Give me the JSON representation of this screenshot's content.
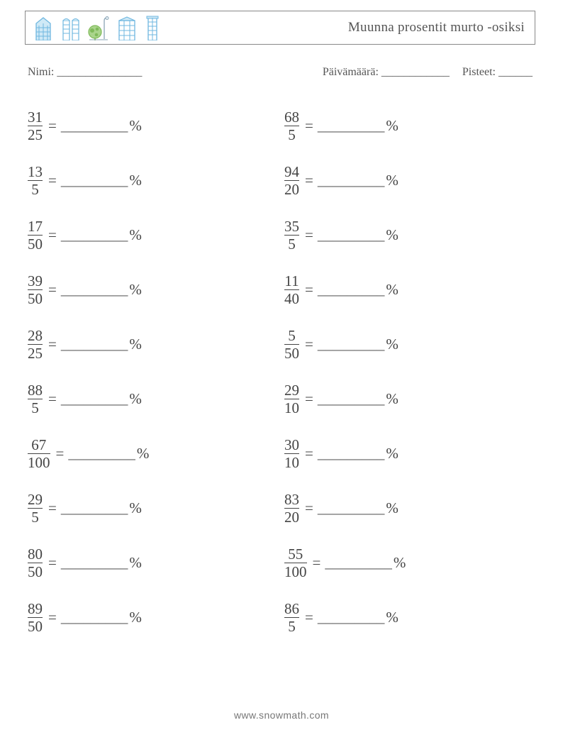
{
  "title": "Muunna prosentit murto -osiksi",
  "info": {
    "name_label": "Nimi:",
    "name_blank": "_______________",
    "date_label": "Päivämäärä:",
    "date_blank": "____________",
    "score_label": "Pisteet:",
    "score_blank": "______"
  },
  "answer_blank": "_________",
  "percent_sign": "%",
  "equals": "=",
  "left_column": [
    {
      "num": "31",
      "den": "25"
    },
    {
      "num": "13",
      "den": "5"
    },
    {
      "num": "17",
      "den": "50"
    },
    {
      "num": "39",
      "den": "50"
    },
    {
      "num": "28",
      "den": "25"
    },
    {
      "num": "88",
      "den": "5"
    },
    {
      "num": "67",
      "den": "100"
    },
    {
      "num": "29",
      "den": "5"
    },
    {
      "num": "80",
      "den": "50"
    },
    {
      "num": "89",
      "den": "50"
    }
  ],
  "right_column": [
    {
      "num": "68",
      "den": "5"
    },
    {
      "num": "94",
      "den": "20"
    },
    {
      "num": "35",
      "den": "5"
    },
    {
      "num": "11",
      "den": "40"
    },
    {
      "num": "5",
      "den": "50"
    },
    {
      "num": "29",
      "den": "10"
    },
    {
      "num": "30",
      "den": "10"
    },
    {
      "num": "83",
      "den": "20"
    },
    {
      "num": "55",
      "den": "100"
    },
    {
      "num": "86",
      "den": "5"
    }
  ],
  "footer": "www.snowmath.com",
  "icon_colors": {
    "building_stroke": "#6fb7e0",
    "building_fill": "#cfe9f6",
    "tree_green": "#7fba5a",
    "lamp": "#8aa4b5"
  }
}
